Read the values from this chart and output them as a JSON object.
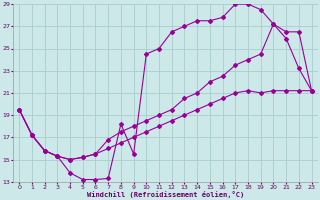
{
  "xlabel": "Windchill (Refroidissement éolien,°C)",
  "bg_color": "#cce8e8",
  "grid_color": "#aacccc",
  "line_color": "#990099",
  "xlim_min": -0.5,
  "xlim_max": 23.5,
  "ylim_min": 13,
  "ylim_max": 29,
  "xticks": [
    0,
    1,
    2,
    3,
    4,
    5,
    6,
    7,
    8,
    9,
    10,
    11,
    12,
    13,
    14,
    15,
    16,
    17,
    18,
    19,
    20,
    21,
    22,
    23
  ],
  "yticks": [
    13,
    15,
    17,
    19,
    21,
    23,
    25,
    27,
    29
  ],
  "curve1_x": [
    0,
    1,
    2,
    3,
    4,
    5,
    6,
    7,
    8,
    9,
    10,
    11,
    12,
    13,
    14,
    15,
    16,
    17,
    18,
    19,
    20,
    21,
    22,
    23
  ],
  "curve1_y": [
    19.5,
    17.2,
    15.8,
    15.3,
    13.8,
    13.2,
    13.2,
    13.3,
    18.2,
    15.5,
    24.5,
    25.0,
    26.5,
    27.0,
    27.5,
    27.5,
    27.8,
    29.0,
    29.0,
    28.5,
    27.2,
    25.9,
    23.2,
    21.2
  ],
  "curve2_x": [
    0,
    1,
    2,
    3,
    4,
    5,
    6,
    7,
    8,
    9,
    10,
    11,
    12,
    13,
    14,
    15,
    16,
    17,
    18,
    19,
    20,
    21,
    22,
    23
  ],
  "curve2_y": [
    19.5,
    17.2,
    15.8,
    15.3,
    15.0,
    15.2,
    15.5,
    16.8,
    17.5,
    18.0,
    18.5,
    19.0,
    19.5,
    20.5,
    21.0,
    22.0,
    22.5,
    23.5,
    24.0,
    24.5,
    27.2,
    26.5,
    26.5,
    21.2
  ],
  "curve3_x": [
    0,
    1,
    2,
    3,
    4,
    5,
    6,
    7,
    8,
    9,
    10,
    11,
    12,
    13,
    14,
    15,
    16,
    17,
    18,
    19,
    20,
    21,
    22,
    23
  ],
  "curve3_y": [
    19.5,
    17.2,
    15.8,
    15.3,
    15.0,
    15.2,
    15.5,
    16.0,
    16.5,
    17.0,
    17.5,
    18.0,
    18.5,
    19.0,
    19.5,
    20.0,
    20.5,
    21.0,
    21.2,
    21.0,
    21.2,
    21.2,
    21.2,
    21.2
  ]
}
